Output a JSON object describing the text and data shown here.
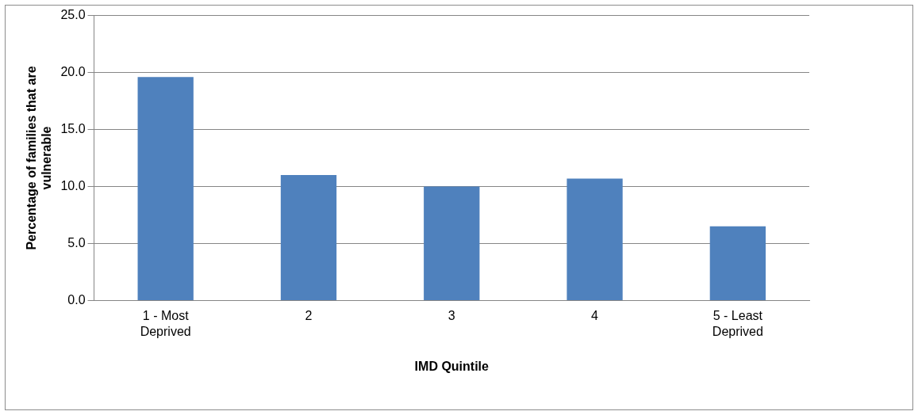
{
  "chart_data": {
    "type": "bar",
    "xlabel": "IMD Quintile",
    "ylabel": "Percentage of families that are vulnerable",
    "categories": [
      "1 - Most Deprived",
      "2",
      "3",
      "4",
      "5 - Least Deprived"
    ],
    "values": [
      19.6,
      11.0,
      10.0,
      10.7,
      6.5
    ],
    "color": "#4f81bd",
    "ylim": [
      0,
      25
    ],
    "yticks": [
      {
        "value": 0,
        "label": "0.0"
      },
      {
        "value": 5,
        "label": "5.0"
      },
      {
        "value": 10,
        "label": "10.0"
      },
      {
        "value": 15,
        "label": "15.0"
      },
      {
        "value": 20,
        "label": "20.0"
      },
      {
        "value": 25,
        "label": "25.0"
      }
    ],
    "grid": "y",
    "legend": false
  }
}
